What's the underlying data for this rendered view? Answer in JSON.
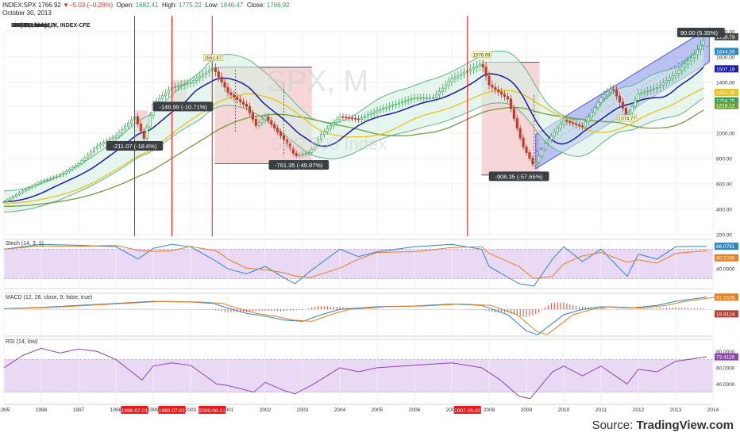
{
  "header": {
    "symbol": "INDEX:SPX",
    "last": "1766.92",
    "change_arrow": "▼",
    "change": "−5.03 (−0.28%)",
    "open_label": "Open:",
    "open": "1682.41",
    "high_label": "High:",
    "high": "1775.22",
    "low_label": "Low:",
    "low": "1646.47",
    "close_label": "Close:",
    "close": "1766.92",
    "date": "October 30, 2013"
  },
  "main_panel": {
    "title": "S&P 500 Index, M, INDEX-CFE",
    "indicators": [
      "BB (20, close, 2)",
      "EMA (8, close)",
      "Pivots HL (10, 10)",
      "MA (200, close)",
      "MA (100, close)",
      "MA (50, close)",
      "MA (20, close)"
    ],
    "watermark_symbol": "SPX, M",
    "watermark_name": "S&P 500 Index",
    "price_labels": [
      {
        "text": "1759.79",
        "value": 1759.79,
        "color": "#4a4a4a"
      },
      {
        "text": "1644.59",
        "value": 1644.59,
        "color": "#2e86c1"
      },
      {
        "text": "1507.19",
        "value": 1507.19,
        "color": "#1a1aa6"
      },
      {
        "text": "1321.26",
        "value": 1321.26,
        "color": "#e8c31a"
      },
      {
        "text": "1254.75",
        "value": 1254.75,
        "color": "#2e9e57"
      },
      {
        "text": "1218.12",
        "value": 1218.12,
        "color": "#6e9e3a"
      }
    ],
    "axis_ticks": [
      {
        "text": "1800.00",
        "value": 1800
      },
      {
        "text": "1600.00",
        "value": 1600
      },
      {
        "text": "1400.00",
        "value": 1400
      },
      {
        "text": "1210.59",
        "value": 1210.59
      },
      {
        "text": "1000.00",
        "value": 1000
      },
      {
        "text": "800.00",
        "value": 800
      },
      {
        "text": "600.00",
        "value": 600
      },
      {
        "text": "400.00",
        "value": 400
      },
      {
        "text": "200.00",
        "value": 200
      }
    ],
    "top_label": "90.00 (5.35%)",
    "pivot_labels": [
      {
        "text": "1552.87",
        "year": 2000.6,
        "value": 1552.87
      },
      {
        "text": "1576.09",
        "year": 2007.8,
        "value": 1576.09
      },
      {
        "text": "1074.77",
        "year": 2011.7,
        "value": 1074.77
      }
    ],
    "measure_labels": [
      {
        "text": "-211.07 (-18.6%)",
        "year": 1998.5,
        "value": 900
      },
      {
        "text": "-146.99 (-10.71%)",
        "year": 1999.8,
        "value": 1210
      },
      {
        "text": "-761.35 (-49.87%)",
        "year": 2002.9,
        "value": 750
      },
      {
        "text": "-908.35 (-57.65%)",
        "year": 2008.8,
        "value": 660
      }
    ]
  },
  "stoch_panel": {
    "title": "Stoch (14, 3, 1)",
    "value_labels": [
      {
        "text": "86.0781",
        "color": "#2e86c1"
      },
      {
        "text": "80.5396",
        "color": "#e67e22"
      }
    ],
    "axis_ticks": [
      {
        "text": "40.0000",
        "value": 40
      }
    ]
  },
  "macd_panel": {
    "title": "MACD (12, 26, close, 9, false, true)",
    "value_labels": [
      {
        "text": "91.5528",
        "color": "#e67e22"
      },
      {
        "text": "19.8124",
        "color": "#c0392b"
      }
    ],
    "axis_ticks": []
  },
  "rsi_panel": {
    "title": "RSI (14, low)",
    "value_labels": [
      {
        "text": "73.4116",
        "color": "#8e44ad"
      }
    ],
    "axis_ticks": [
      {
        "text": "80.0000",
        "value": 80
      },
      {
        "text": "60.0000",
        "value": 60
      },
      {
        "text": "40.0000",
        "value": 40
      }
    ]
  },
  "time_axis": {
    "years": [
      "1995",
      "1996",
      "1997",
      "1998",
      "1999",
      "2000",
      "2001",
      "2002",
      "2003",
      "2004",
      "2005",
      "2006",
      "2007",
      "2008",
      "2009",
      "2010",
      "2011",
      "2012",
      "2013",
      "2014"
    ],
    "marked_dates": [
      {
        "text": "1998-07-01",
        "year": 1998.5
      },
      {
        "text": "1999-07-01",
        "year": 1999.5
      },
      {
        "text": "2000-08-01",
        "year": 2000.58
      },
      {
        "text": "2007-06-01",
        "year": 2007.42
      }
    ]
  },
  "footer": {
    "source_prefix": "Source: ",
    "source_brand": "TradingView.com"
  },
  "colors": {
    "candle_up": "#3aa757",
    "candle_down": "#c0392b",
    "bollinger": "#5fb58a",
    "bollinger_fill": "#d7efe4",
    "ema8": "#1a1aa6",
    "ma200": "#6e9e3a",
    "ma100": "#e8c31a",
    "bear_box": "#f2c4c4",
    "channel": "#7f8fe8",
    "marker_line": "#e41a1c",
    "osc_band": "#e9d9f5",
    "stoch_k": "#2e86c1",
    "stoch_d": "#e67e22",
    "macd_line": "#2e86c1",
    "macd_signal": "#e67e22",
    "macd_hist": "#c0392b",
    "rsi": "#8e44ad"
  },
  "chart_data": {
    "type": "line",
    "title": "S&P 500 Index, M, INDEX-CFE",
    "x_range": [
      1995,
      2014
    ],
    "ylim": [
      200,
      1800
    ],
    "series": [
      {
        "name": "S&P 500 Index",
        "x": [
          1995.0,
          1995.5,
          1996.0,
          1996.5,
          1997.0,
          1997.5,
          1998.0,
          1998.5,
          1998.75,
          1999.0,
          1999.5,
          2000.0,
          2000.6,
          2001.0,
          2001.5,
          2001.75,
          2002.0,
          2002.5,
          2002.8,
          2003.2,
          2003.5,
          2004.0,
          2004.5,
          2005.0,
          2005.5,
          2006.0,
          2006.5,
          2007.0,
          2007.8,
          2008.0,
          2008.5,
          2008.9,
          2009.2,
          2009.5,
          2010.0,
          2010.5,
          2011.0,
          2011.3,
          2011.7,
          2012.0,
          2012.5,
          2013.0,
          2013.5,
          2013.83
        ],
        "values": [
          460,
          545,
          620,
          670,
          760,
          900,
          980,
          1130,
          960,
          1230,
          1360,
          1400,
          1517,
          1320,
          1210,
          1060,
          1130,
          950,
          820,
          850,
          990,
          1130,
          1110,
          1180,
          1230,
          1280,
          1280,
          1430,
          1550,
          1380,
          1270,
          900,
          740,
          920,
          1100,
          1050,
          1280,
          1360,
          1130,
          1310,
          1360,
          1470,
          1620,
          1766.92
        ]
      },
      {
        "name": "Stoch (14, 3, 1)",
        "x": [
          1995.0,
          1996.0,
          1997.0,
          1998.0,
          1998.6,
          1999.0,
          1999.5,
          2000.0,
          2000.7,
          2001.0,
          2001.5,
          2002.0,
          2002.5,
          2002.8,
          2003.2,
          2004.0,
          2004.5,
          2005.0,
          2006.0,
          2007.0,
          2007.8,
          2008.0,
          2008.8,
          2009.2,
          2009.7,
          2010.0,
          2010.5,
          2011.0,
          2011.7,
          2012.0,
          2012.5,
          2013.0,
          2013.83
        ],
        "values": [
          80,
          90,
          88,
          85,
          60,
          82,
          90,
          85,
          55,
          40,
          30,
          45,
          22,
          10,
          35,
          80,
          65,
          75,
          85,
          90,
          80,
          45,
          10,
          5,
          60,
          85,
          55,
          80,
          25,
          70,
          60,
          85,
          86.08
        ]
      },
      {
        "name": "MACD (12, 26, close, 9, false, true)",
        "x": [
          1995.0,
          1996.0,
          1997.0,
          1998.0,
          1999.0,
          2000.0,
          2000.6,
          2001.0,
          2001.5,
          2002.0,
          2002.5,
          2003.0,
          2003.5,
          2004.0,
          2005.0,
          2006.0,
          2007.0,
          2007.8,
          2008.5,
          2009.0,
          2009.3,
          2010.0,
          2010.5,
          2011.0,
          2011.8,
          2012.5,
          2013.0,
          2013.83
        ],
        "values": [
          5,
          15,
          30,
          45,
          60,
          55,
          45,
          10,
          -30,
          -50,
          -80,
          -90,
          -40,
          0,
          20,
          25,
          40,
          30,
          -40,
          -160,
          -190,
          -40,
          0,
          20,
          10,
          30,
          60,
          91.55
        ]
      },
      {
        "name": "RSI (14, low)",
        "x": [
          1995.0,
          1995.5,
          1996.0,
          1996.5,
          1997.0,
          1997.5,
          1998.0,
          1998.7,
          1999.0,
          1999.5,
          2000.0,
          2000.7,
          2001.0,
          2001.7,
          2002.0,
          2002.5,
          2002.8,
          2003.3,
          2004.0,
          2004.5,
          2005.0,
          2006.0,
          2007.0,
          2007.8,
          2008.3,
          2008.8,
          2009.1,
          2009.7,
          2010.0,
          2010.5,
          2011.0,
          2011.7,
          2012.0,
          2012.5,
          2013.0,
          2013.83
        ],
        "values": [
          60,
          75,
          84,
          78,
          83,
          80,
          70,
          45,
          62,
          66,
          63,
          40,
          38,
          30,
          42,
          32,
          28,
          40,
          60,
          55,
          60,
          63,
          66,
          60,
          45,
          25,
          22,
          55,
          62,
          50,
          62,
          40,
          58,
          55,
          68,
          73.41
        ]
      }
    ],
    "annotations": [
      "-211.07 (-18.6%)",
      "-146.99 (-10.71%)",
      "-761.35 (-49.87%)",
      "-908.35 (-57.65%)",
      "90.00 (5.35%)",
      "1552.87",
      "1576.09",
      "1074.77"
    ],
    "grid": true
  }
}
